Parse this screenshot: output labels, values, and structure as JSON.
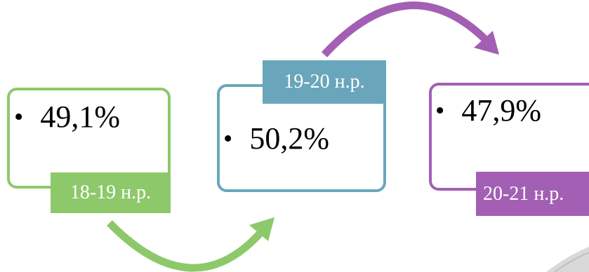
{
  "diagram": {
    "stages": [
      {
        "value": "49,1%",
        "period": "18-19 н.р.",
        "color": "#8dc96a"
      },
      {
        "value": "50,2%",
        "period": "19-20 н.р.",
        "color": "#6aa6bb"
      },
      {
        "value": "47,9%",
        "period": "20-21 н.р.",
        "color": "#a25fb3"
      }
    ],
    "bullet_glyph": "•"
  }
}
